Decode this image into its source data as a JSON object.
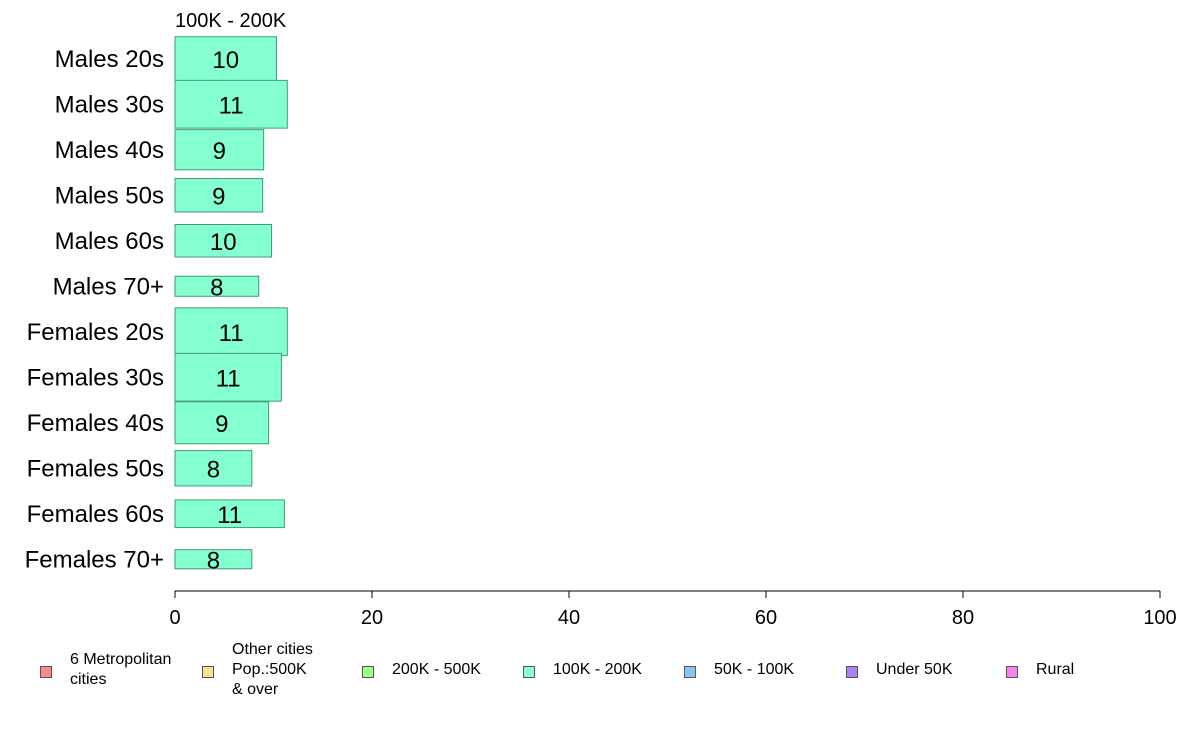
{
  "chart_data": {
    "type": "bar",
    "orientation": "horizontal",
    "panel_title": "100K - 200K",
    "categories": [
      "Males 20s",
      "Males 30s",
      "Males 40s",
      "Males 50s",
      "Males 60s",
      "Males 70+",
      "Females 20s",
      "Females 30s",
      "Females 40s",
      "Females 50s",
      "Females 60s",
      "Females 70+"
    ],
    "values": [
      10.3,
      11.4,
      9.0,
      8.9,
      9.8,
      8.5,
      11.4,
      10.8,
      9.5,
      7.8,
      11.1,
      7.8
    ],
    "value_labels": [
      "10",
      "11",
      "9",
      "9",
      "10",
      "8",
      "11",
      "11",
      "9",
      "8",
      "11",
      "8"
    ],
    "relative_bar_thickness": [
      0.92,
      1.0,
      0.84,
      0.7,
      0.68,
      0.42,
      1.0,
      1.0,
      0.88,
      0.74,
      0.58,
      0.4
    ],
    "xlim": [
      0,
      100
    ],
    "x_ticks": [
      "0",
      "20",
      "40",
      "60",
      "80",
      "100"
    ],
    "bar_color": "#84ffd0",
    "bar_edge_color": "#3f9a7a",
    "xlabel": "",
    "ylabel": "",
    "grid": false
  },
  "legend": {
    "placement": "bottom",
    "items": [
      {
        "label": "6 Metropolitan\n cities",
        "color": "#f88a88"
      },
      {
        "label": "Other cities\nPop.:500K\n & over",
        "color": "#f8e48a"
      },
      {
        "label": "200K - 500K",
        "color": "#a4f884"
      },
      {
        "label": "100K - 200K",
        "color": "#84ffd0"
      },
      {
        "label": "50K - 100K",
        "color": "#84c8f8"
      },
      {
        "label": "Under 50K",
        "color": "#a884f0"
      },
      {
        "label": "Rural",
        "color": "#f884ea"
      }
    ]
  }
}
